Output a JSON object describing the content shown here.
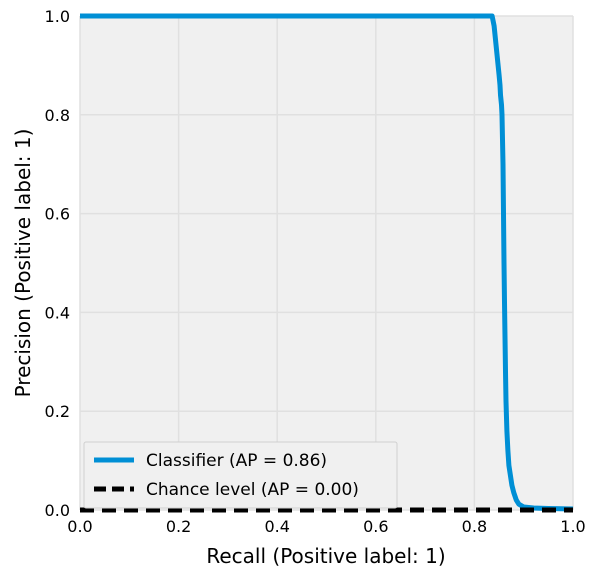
{
  "chart_data": {
    "type": "line",
    "title": "",
    "xlabel": "Recall (Positive label: 1)",
    "ylabel": "Precision (Positive label: 1)",
    "xlim": [
      0.0,
      1.0
    ],
    "ylim": [
      0.0,
      1.0
    ],
    "grid": true,
    "legend_position": "lower-left",
    "x_ticks": [
      "0.0",
      "0.2",
      "0.4",
      "0.6",
      "0.8",
      "1.0"
    ],
    "y_ticks": [
      "0.0",
      "0.2",
      "0.4",
      "0.6",
      "0.8",
      "1.0"
    ],
    "series": [
      {
        "name": "Classifier (AP = 0.86)",
        "color": "#008fd5",
        "style": "solid",
        "x": [
          0.0,
          0.836,
          0.838,
          0.84,
          0.842,
          0.844,
          0.846,
          0.848,
          0.85,
          0.852,
          0.853,
          0.855,
          0.856,
          0.857,
          0.858,
          0.859,
          0.86,
          0.861,
          0.862,
          0.863,
          0.864,
          0.866,
          0.868,
          0.87,
          0.873,
          0.876,
          0.88,
          0.885,
          0.89,
          0.9,
          0.92,
          0.95,
          1.0
        ],
        "y": [
          1.0,
          1.0,
          0.99,
          0.98,
          0.96,
          0.94,
          0.92,
          0.9,
          0.88,
          0.86,
          0.84,
          0.82,
          0.8,
          0.75,
          0.7,
          0.6,
          0.5,
          0.42,
          0.35,
          0.28,
          0.22,
          0.16,
          0.12,
          0.09,
          0.07,
          0.05,
          0.035,
          0.02,
          0.012,
          0.006,
          0.004,
          0.003,
          0.002
        ]
      },
      {
        "name": "Chance level (AP = 0.00)",
        "color": "#000000",
        "style": "dashed",
        "x": [
          0.0,
          1.0
        ],
        "y": [
          0.0,
          0.0
        ]
      }
    ]
  }
}
